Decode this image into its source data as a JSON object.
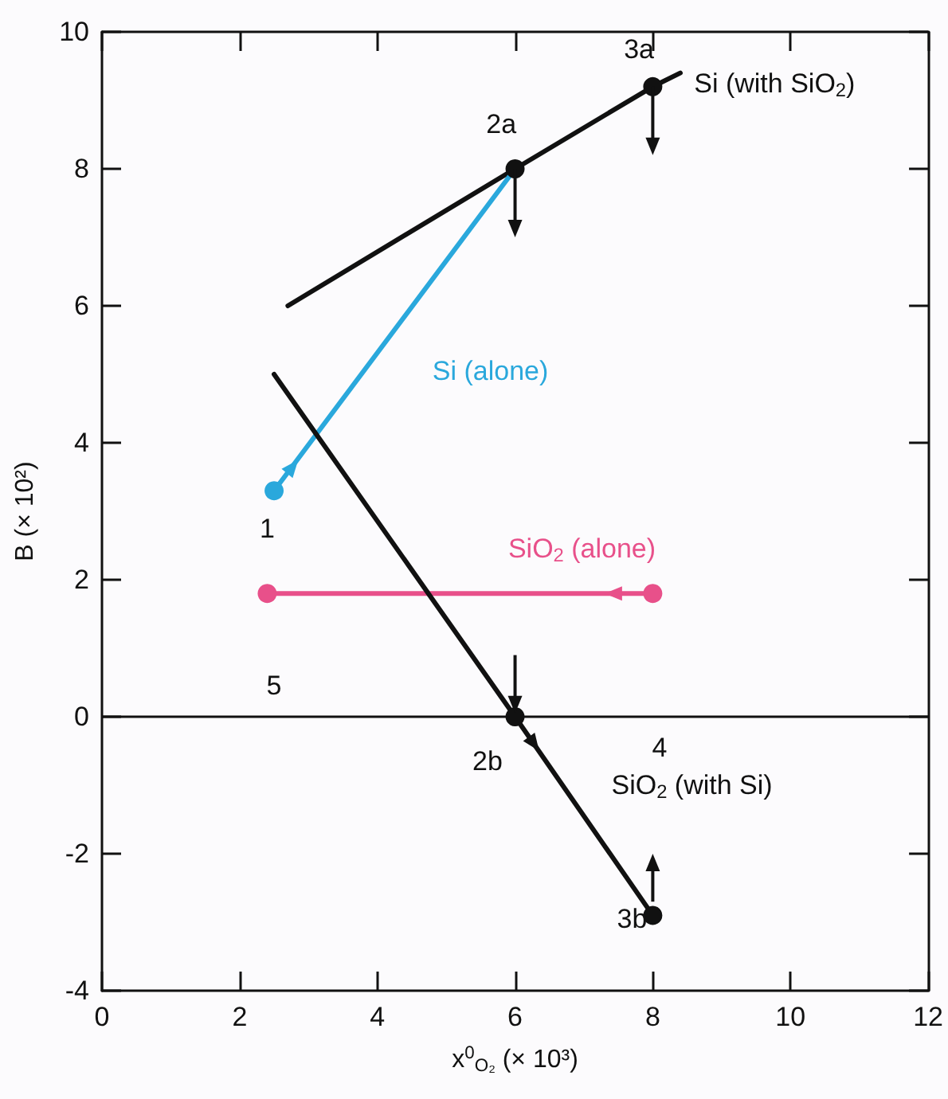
{
  "chart_data": {
    "type": "line",
    "xlabel": "x$^{0}$$_{O₂}$ (× 10³)",
    "ylabel": "B (× 10²)",
    "xlim": [
      0,
      12
    ],
    "xticks": [
      0,
      2,
      4,
      6,
      8,
      10,
      12
    ],
    "ylim": [
      -4,
      10
    ],
    "yticks": [
      -4,
      -2,
      0,
      2,
      4,
      6,
      8,
      10
    ],
    "grid": false,
    "line_style": "solid",
    "series": [
      {
        "name": "Si (with SiO$_{2}$)",
        "marker": "none",
        "color": "#111111",
        "x": [
          2.7,
          6,
          8,
          8.4
        ],
        "values": [
          6.0,
          8.0,
          9.2,
          9.4
        ]
      },
      {
        "name": "Si (alone)",
        "marker": "none",
        "color": "#2aa8dc",
        "x": [
          2.5,
          6
        ],
        "values": [
          3.3,
          8.0
        ]
      },
      {
        "name": "SiO$_{2}$ (alone)",
        "marker": "none",
        "color": "#e8508a",
        "x": [
          2.4,
          8
        ],
        "values": [
          1.8,
          1.8
        ]
      },
      {
        "name": "SiO$_{2}$ (with Si)",
        "marker": "none",
        "color": "#111111",
        "x": [
          2.5,
          6,
          8
        ],
        "values": [
          5.0,
          0,
          -2.9
        ]
      },
      {
        "type": "scatter",
        "marker": "circle",
        "color": "#111111",
        "x": [
          6,
          8,
          6,
          8
        ],
        "values": [
          8.0,
          9.2,
          0,
          -2.9
        ]
      },
      {
        "type": "scatter",
        "marker": "circle",
        "color": "#2aa8dc",
        "x": [
          2.5
        ],
        "values": [
          3.3
        ]
      },
      {
        "type": "scatter",
        "marker": "circle",
        "color": "#e8508a",
        "x": [
          2.4,
          8
        ],
        "values": [
          1.8,
          1.8
        ]
      }
    ],
    "ref_lines": [
      {
        "axis": "y",
        "value": 0,
        "color": "#111111"
      }
    ],
    "annotations": [
      "1",
      "2a",
      "3a",
      "2b",
      "3b",
      "4",
      "5"
    ]
  }
}
